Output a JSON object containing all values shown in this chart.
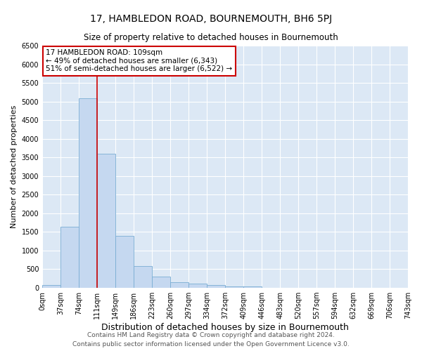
{
  "title": "17, HAMBLEDON ROAD, BOURNEMOUTH, BH6 5PJ",
  "subtitle": "Size of property relative to detached houses in Bournemouth",
  "xlabel": "Distribution of detached houses by size in Bournemouth",
  "ylabel": "Number of detached properties",
  "annotation_line1": "17 HAMBLEDON ROAD: 109sqm",
  "annotation_line2": "← 49% of detached houses are smaller (6,343)",
  "annotation_line3": "51% of semi-detached houses are larger (6,522) →",
  "footer_line1": "Contains HM Land Registry data © Crown copyright and database right 2024.",
  "footer_line2": "Contains public sector information licensed under the Open Government Licence v3.0.",
  "bar_left_edges": [
    0,
    37,
    74,
    111,
    149,
    186,
    223,
    260,
    297,
    334,
    372,
    409,
    446,
    483,
    520,
    557,
    594,
    632,
    669,
    706
  ],
  "bar_widths": [
    37,
    37,
    37,
    37,
    37,
    37,
    37,
    37,
    37,
    37,
    37,
    37,
    37,
    37,
    37,
    37,
    37,
    37,
    37,
    37
  ],
  "bar_heights": [
    75,
    1630,
    5080,
    3600,
    1390,
    590,
    295,
    155,
    110,
    70,
    45,
    30,
    0,
    0,
    0,
    0,
    0,
    0,
    0,
    0
  ],
  "bar_color": "#c5d8f0",
  "bar_edge_color": "#7aadd4",
  "vline_x": 111,
  "vline_color": "#cc0000",
  "xlim": [
    0,
    743
  ],
  "ylim": [
    0,
    6500
  ],
  "yticks": [
    0,
    500,
    1000,
    1500,
    2000,
    2500,
    3000,
    3500,
    4000,
    4500,
    5000,
    5500,
    6000,
    6500
  ],
  "xtick_labels": [
    "0sqm",
    "37sqm",
    "74sqm",
    "111sqm",
    "149sqm",
    "186sqm",
    "223sqm",
    "260sqm",
    "297sqm",
    "334sqm",
    "372sqm",
    "409sqm",
    "446sqm",
    "483sqm",
    "520sqm",
    "557sqm",
    "594sqm",
    "632sqm",
    "669sqm",
    "706sqm",
    "743sqm"
  ],
  "xtick_positions": [
    0,
    37,
    74,
    111,
    149,
    186,
    223,
    260,
    297,
    334,
    372,
    409,
    446,
    483,
    520,
    557,
    594,
    632,
    669,
    706,
    743
  ],
  "fig_bg_color": "#ffffff",
  "plot_bg_color": "#dce8f5",
  "annotation_box_color": "#ffffff",
  "annotation_box_edge_color": "#cc0000",
  "grid_color": "#ffffff",
  "title_fontsize": 10,
  "subtitle_fontsize": 8.5,
  "annotation_fontsize": 7.5,
  "ylabel_fontsize": 8,
  "xlabel_fontsize": 9,
  "tick_fontsize": 7,
  "footer_fontsize": 6.5
}
